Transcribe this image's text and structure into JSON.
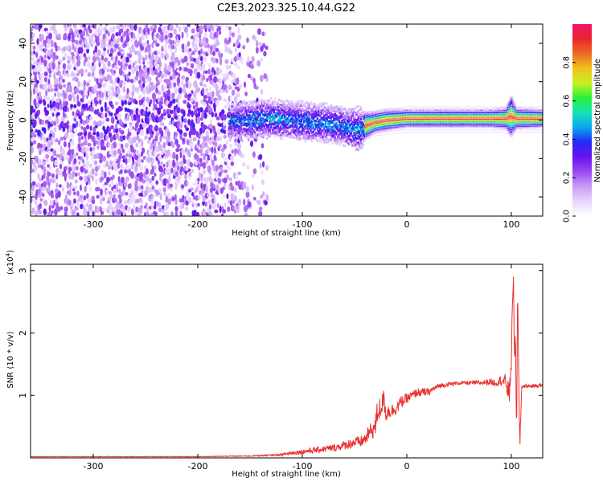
{
  "title": "C2E3.2023.325.10.44.G22",
  "colors": {
    "snr_line": "#e8312f",
    "axis": "#000000",
    "colormap": [
      "#ffffff",
      "#e6d6fb",
      "#c89cf6",
      "#9b4bf0",
      "#6a12f0",
      "#1f2cf5",
      "#0aa6f0",
      "#16e2b8",
      "#27f03a",
      "#c6f020",
      "#f0c21a",
      "#ef6a24",
      "#e8262f",
      "#f0146c"
    ]
  },
  "chart_data": [
    {
      "type": "heatmap",
      "xlabel": "Height of straight line (km)",
      "ylabel": "Frequency (Hz)",
      "xlim": [
        -360,
        130
      ],
      "ylim": [
        -50,
        50
      ],
      "xticks": [
        {
          "v": -300,
          "label": "-300"
        },
        {
          "v": -200,
          "label": "-200"
        },
        {
          "v": -100,
          "label": "-100"
        },
        {
          "v": 0,
          "label": "0"
        },
        {
          "v": 100,
          "label": "100"
        }
      ],
      "yticks": [
        {
          "v": -40,
          "label": "-40"
        },
        {
          "v": -20,
          "label": "-20"
        },
        {
          "v": 0,
          "label": "0"
        },
        {
          "v": 20,
          "label": "20"
        },
        {
          "v": 40,
          "label": "40"
        }
      ],
      "colorbar": {
        "label": "Normalized spectral amplitude",
        "range": [
          0,
          1
        ],
        "ticks": [
          {
            "v": 0.0,
            "label": "0.0"
          },
          {
            "v": 0.2,
            "label": "0.2"
          },
          {
            "v": 0.4,
            "label": "0.4"
          },
          {
            "v": 0.6,
            "label": "0.6"
          },
          {
            "v": 0.8,
            "label": "0.8"
          }
        ]
      },
      "ridge": {
        "x": [
          -170,
          -150,
          -130,
          -110,
          -90,
          -70,
          -55,
          -45,
          -40,
          -30,
          -20,
          0,
          20,
          50,
          80,
          95,
          100,
          105,
          130
        ],
        "freq": [
          0,
          0,
          1,
          0,
          -1,
          -2,
          -4,
          -5,
          -3,
          -1,
          0,
          1,
          1,
          1,
          1,
          1,
          2,
          1,
          1
        ],
        "width": [
          4,
          5,
          5,
          5,
          5,
          5,
          5,
          6,
          4,
          3,
          3,
          2.5,
          2.5,
          2.5,
          2.5,
          3,
          6,
          3,
          2.5
        ]
      }
    },
    {
      "type": "line",
      "xlabel": "Height of straight line (km)",
      "ylabel": "SNR (10 * v/v)",
      "multiplier": "(x10",
      "multiplier_exp": "4",
      "multiplier_close": ")",
      "xlim": [
        -360,
        130
      ],
      "ylim": [
        0,
        3.1
      ],
      "xticks": [
        {
          "v": -300,
          "label": "-300"
        },
        {
          "v": -200,
          "label": "-200"
        },
        {
          "v": -100,
          "label": "-100"
        },
        {
          "v": 0,
          "label": "0"
        },
        {
          "v": 100,
          "label": "100"
        }
      ],
      "yticks": [
        {
          "v": 1,
          "label": "1"
        },
        {
          "v": 2,
          "label": "2"
        },
        {
          "v": 3,
          "label": "3"
        }
      ],
      "series": [
        {
          "color": "#e8312f",
          "x": [
            -360,
            -300,
            -200,
            -150,
            -120,
            -110,
            -100,
            -90,
            -80,
            -70,
            -60,
            -50,
            -45,
            -40,
            -35,
            -30,
            -28,
            -25,
            -22,
            -20,
            -18,
            -15,
            -10,
            -5,
            0,
            5,
            10,
            15,
            20,
            25,
            30,
            40,
            50,
            60,
            70,
            80,
            85,
            90,
            95,
            98,
            100,
            102,
            103,
            104,
            105,
            106,
            108,
            110,
            115,
            120,
            130
          ],
          "y": [
            0.02,
            0.02,
            0.02,
            0.03,
            0.05,
            0.08,
            0.1,
            0.12,
            0.14,
            0.16,
            0.2,
            0.25,
            0.25,
            0.3,
            0.42,
            0.5,
            0.75,
            0.8,
            0.95,
            0.7,
            0.75,
            0.75,
            0.8,
            0.9,
            0.95,
            1.0,
            1.05,
            1.05,
            1.05,
            1.1,
            1.15,
            1.18,
            1.2,
            1.2,
            1.2,
            1.22,
            1.2,
            1.25,
            1.2,
            1.0,
            1.6,
            3.05,
            1.4,
            1.9,
            0.5,
            2.6,
            0.2,
            1.15,
            1.15,
            1.15,
            1.16
          ],
          "noise": [
            0.005,
            0.005,
            0.005,
            0.008,
            0.015,
            0.03,
            0.04,
            0.05,
            0.05,
            0.06,
            0.07,
            0.09,
            0.09,
            0.1,
            0.14,
            0.17,
            0.22,
            0.18,
            0.15,
            0.14,
            0.12,
            0.12,
            0.1,
            0.1,
            0.08,
            0.07,
            0.07,
            0.07,
            0.06,
            0.05,
            0.04,
            0.035,
            0.03,
            0.035,
            0.04,
            0.05,
            0.06,
            0.08,
            0.15,
            0.2,
            0.2,
            0.2,
            0.2,
            0.2,
            0.2,
            0.2,
            0.2,
            0.04,
            0.03,
            0.03,
            0.03
          ]
        }
      ]
    }
  ]
}
